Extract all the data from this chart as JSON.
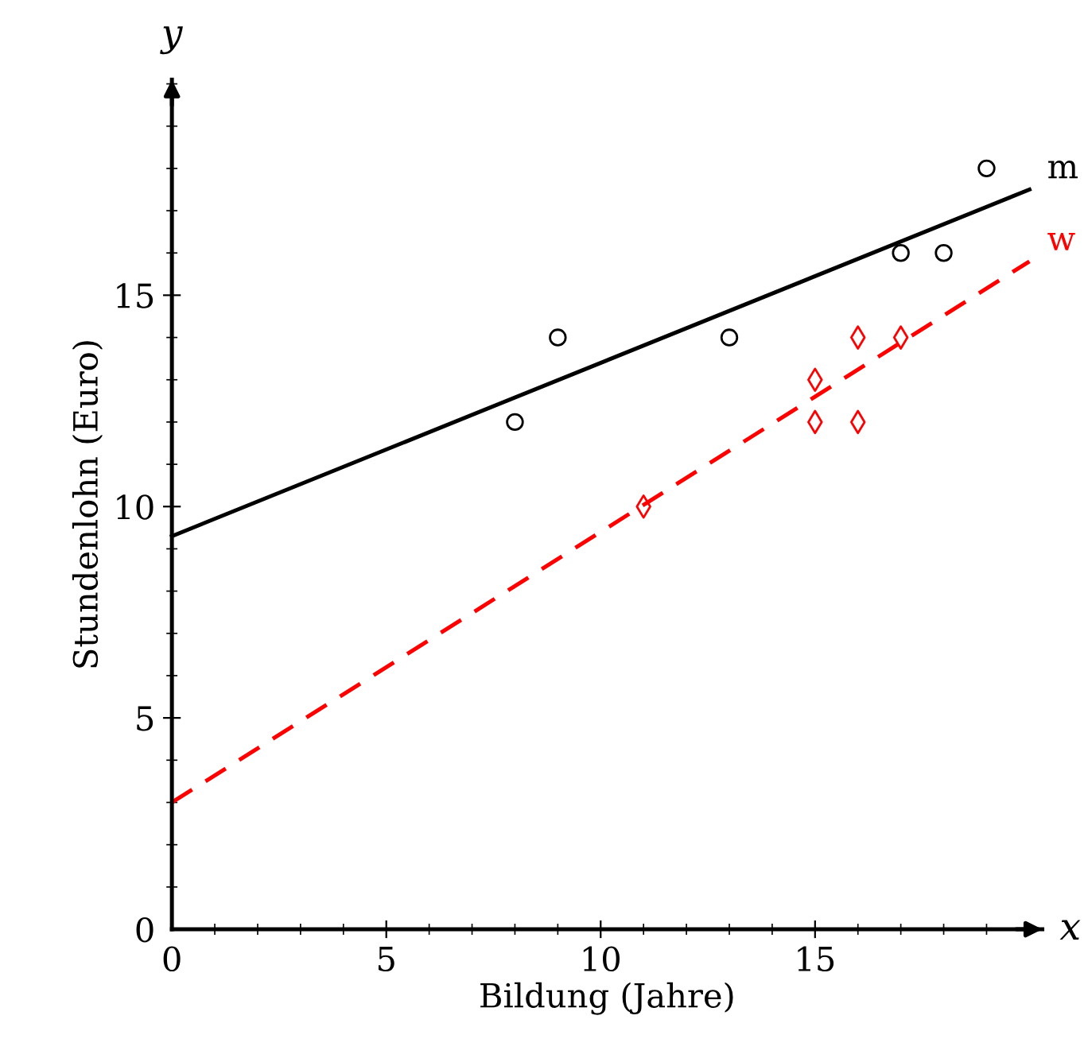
{
  "chart_data": {
    "type": "scatter",
    "xlabel": "Bildung (Jahre)",
    "ylabel": "Stundenlohn (Euro)",
    "annotations": [
      "x",
      "y"
    ],
    "xlim": [
      0,
      20.3
    ],
    "ylim": [
      0,
      20.1
    ],
    "xticks": [
      0,
      5,
      10,
      15
    ],
    "yticks": [
      0,
      5,
      10,
      15
    ],
    "grid": false,
    "legend": false,
    "series": [
      {
        "color": "#000000",
        "marker": "circle",
        "x": [
          8,
          9,
          13,
          17,
          18,
          19
        ],
        "values": [
          12,
          14,
          14,
          16,
          16,
          18
        ]
      },
      {
        "color": "#ff0000",
        "marker": "diamond",
        "x": [
          11,
          15,
          15,
          16,
          16,
          17
        ],
        "values": [
          10,
          13,
          12,
          14,
          12,
          14
        ]
      },
      {
        "type": "line",
        "name": "m",
        "color": "#000000",
        "line_style": "solid",
        "x": [
          0,
          20
        ],
        "values": [
          9.3,
          17.5
        ]
      },
      {
        "type": "line",
        "name": "w",
        "color": "#ff0000",
        "line_style": "dashed",
        "x": [
          0,
          20
        ],
        "values": [
          3.0,
          15.8
        ]
      }
    ]
  }
}
